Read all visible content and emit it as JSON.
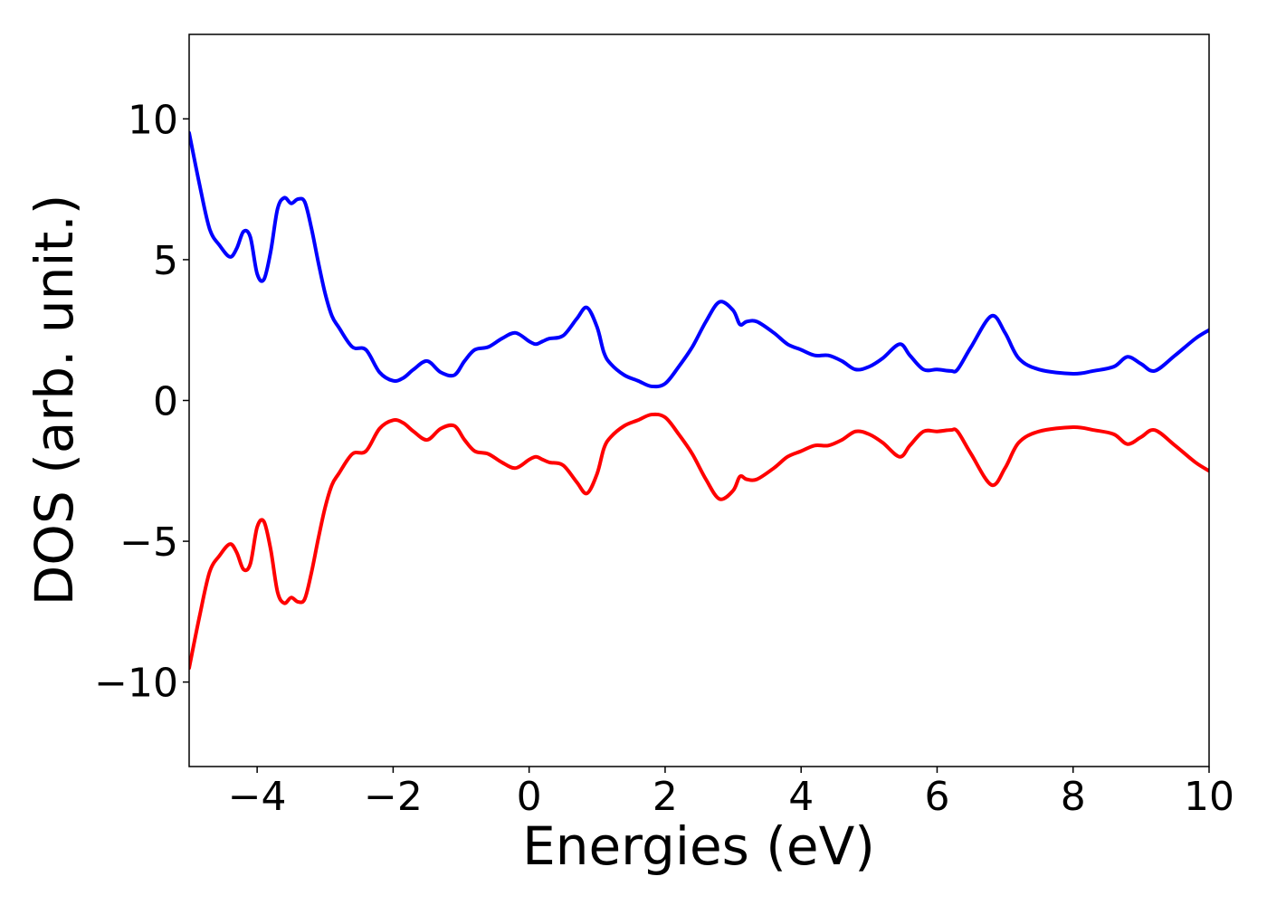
{
  "chart_data": {
    "type": "line",
    "title": "",
    "xlabel": "Energies (eV)",
    "ylabel": "DOS (arb. unit.)",
    "xlim": [
      -5,
      10
    ],
    "ylim": [
      -13,
      13
    ],
    "grid": false,
    "legend": "none",
    "x_ticks": [
      -4,
      -2,
      0,
      2,
      4,
      6,
      8,
      10
    ],
    "x_tick_labels": [
      "−4",
      "−2",
      "0",
      "2",
      "4",
      "6",
      "8",
      "10"
    ],
    "y_ticks": [
      10,
      5,
      0,
      -5,
      -10
    ],
    "y_tick_labels": [
      "10",
      "5",
      "0",
      "−5",
      "−10"
    ],
    "series": [
      {
        "color": "#0000ff",
        "x": [
          -5.0,
          -4.85,
          -4.7,
          -4.55,
          -4.4,
          -4.3,
          -4.2,
          -4.1,
          -4.0,
          -3.9,
          -3.8,
          -3.7,
          -3.6,
          -3.5,
          -3.4,
          -3.3,
          -3.2,
          -3.1,
          -3.0,
          -2.9,
          -2.8,
          -2.6,
          -2.4,
          -2.2,
          -2.0,
          -1.85,
          -1.7,
          -1.5,
          -1.3,
          -1.1,
          -0.95,
          -0.8,
          -0.6,
          -0.4,
          -0.2,
          0.0,
          0.1,
          0.2,
          0.3,
          0.5,
          0.7,
          0.85,
          1.0,
          1.1,
          1.2,
          1.4,
          1.6,
          1.8,
          2.0,
          2.2,
          2.4,
          2.6,
          2.8,
          3.0,
          3.1,
          3.2,
          3.35,
          3.6,
          3.8,
          4.0,
          4.2,
          4.4,
          4.6,
          4.8,
          5.0,
          5.2,
          5.45,
          5.6,
          5.8,
          6.0,
          6.2,
          6.3,
          6.5,
          6.8,
          7.0,
          7.2,
          7.5,
          8.0,
          8.3,
          8.6,
          8.8,
          9.0,
          9.2,
          9.5,
          9.8,
          10.0
        ],
        "y": [
          9.5,
          7.7,
          6.1,
          5.5,
          5.1,
          5.4,
          6.0,
          5.8,
          4.5,
          4.3,
          5.3,
          6.8,
          7.2,
          7.0,
          7.15,
          7.05,
          6.1,
          4.9,
          3.8,
          3.0,
          2.6,
          1.9,
          1.8,
          1.0,
          0.7,
          0.8,
          1.1,
          1.4,
          1.0,
          0.9,
          1.4,
          1.8,
          1.9,
          2.2,
          2.4,
          2.1,
          2.0,
          2.1,
          2.2,
          2.3,
          2.9,
          3.3,
          2.6,
          1.7,
          1.3,
          0.9,
          0.7,
          0.5,
          0.6,
          1.2,
          1.9,
          2.8,
          3.5,
          3.2,
          2.7,
          2.8,
          2.8,
          2.4,
          2.0,
          1.8,
          1.6,
          1.6,
          1.4,
          1.1,
          1.2,
          1.5,
          2.0,
          1.6,
          1.1,
          1.1,
          1.05,
          1.1,
          1.9,
          3.0,
          2.4,
          1.5,
          1.1,
          0.95,
          1.05,
          1.2,
          1.55,
          1.3,
          1.05,
          1.6,
          2.2,
          2.5
        ]
      },
      {
        "color": "#ff0000",
        "x": [
          -5.0,
          -4.85,
          -4.7,
          -4.55,
          -4.4,
          -4.3,
          -4.2,
          -4.1,
          -4.0,
          -3.9,
          -3.8,
          -3.7,
          -3.6,
          -3.5,
          -3.4,
          -3.3,
          -3.2,
          -3.1,
          -3.0,
          -2.9,
          -2.8,
          -2.6,
          -2.4,
          -2.2,
          -2.0,
          -1.85,
          -1.7,
          -1.5,
          -1.3,
          -1.1,
          -0.95,
          -0.8,
          -0.6,
          -0.4,
          -0.2,
          0.0,
          0.1,
          0.2,
          0.3,
          0.5,
          0.7,
          0.85,
          1.0,
          1.1,
          1.2,
          1.4,
          1.6,
          1.8,
          2.0,
          2.2,
          2.4,
          2.6,
          2.8,
          3.0,
          3.1,
          3.2,
          3.35,
          3.6,
          3.8,
          4.0,
          4.2,
          4.4,
          4.6,
          4.8,
          5.0,
          5.2,
          5.45,
          5.6,
          5.8,
          6.0,
          6.2,
          6.3,
          6.5,
          6.8,
          7.0,
          7.2,
          7.5,
          8.0,
          8.3,
          8.6,
          8.8,
          9.0,
          9.2,
          9.5,
          9.8,
          10.0
        ],
        "y": [
          -9.5,
          -7.7,
          -6.1,
          -5.5,
          -5.1,
          -5.4,
          -6.0,
          -5.8,
          -4.5,
          -4.3,
          -5.3,
          -6.8,
          -7.2,
          -7.0,
          -7.15,
          -7.05,
          -6.1,
          -4.9,
          -3.8,
          -3.0,
          -2.6,
          -1.9,
          -1.8,
          -1.0,
          -0.7,
          -0.8,
          -1.1,
          -1.4,
          -1.0,
          -0.9,
          -1.4,
          -1.8,
          -1.9,
          -2.2,
          -2.4,
          -2.1,
          -2.0,
          -2.1,
          -2.2,
          -2.3,
          -2.9,
          -3.3,
          -2.6,
          -1.7,
          -1.3,
          -0.9,
          -0.7,
          -0.5,
          -0.6,
          -1.2,
          -1.9,
          -2.8,
          -3.5,
          -3.2,
          -2.7,
          -2.8,
          -2.8,
          -2.4,
          -2.0,
          -1.8,
          -1.6,
          -1.6,
          -1.4,
          -1.1,
          -1.2,
          -1.5,
          -2.0,
          -1.6,
          -1.1,
          -1.1,
          -1.05,
          -1.1,
          -1.9,
          -3.0,
          -2.4,
          -1.5,
          -1.1,
          -0.95,
          -1.05,
          -1.2,
          -1.55,
          -1.3,
          -1.05,
          -1.6,
          -2.2,
          -2.5
        ]
      }
    ]
  }
}
